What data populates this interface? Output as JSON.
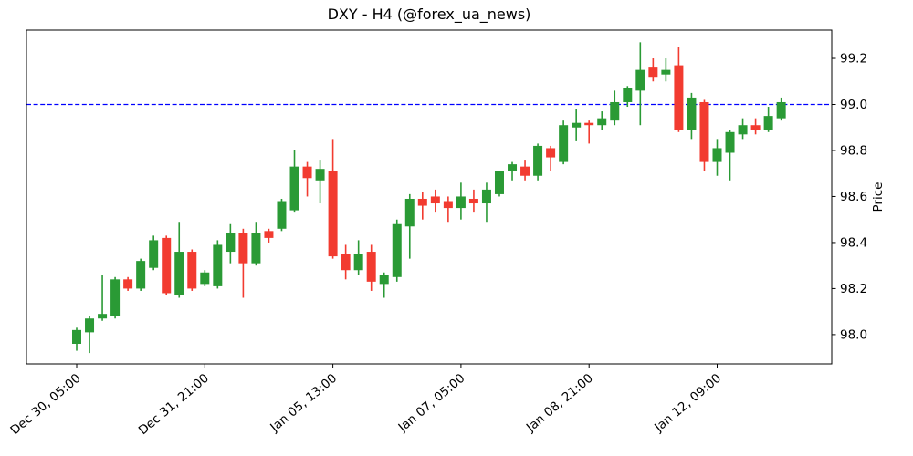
{
  "title": "DXY - H4 (@forex_ua_news)",
  "colors": {
    "up": "#2a9a35",
    "down": "#f23b30",
    "hline": "#0000ff",
    "axis": "#000000",
    "text": "#000000",
    "background": "#ffffff"
  },
  "chart_data": {
    "type": "candlestick",
    "symbol": "DXY",
    "timeframe": "H4",
    "source_handle": "@forex_ua_news",
    "ylabel": "Price",
    "ylabel_side": "right",
    "grid": false,
    "hline_value": 99.0,
    "hline_style": "dashed",
    "ylim": [
      97.87,
      99.32
    ],
    "y_ticks": [
      98.0,
      98.2,
      98.4,
      98.6,
      98.8,
      99.0,
      99.2
    ],
    "x_tick_indices": [
      0,
      10,
      20,
      30,
      40,
      50
    ],
    "x_tick_labels": [
      "Dec 30, 05:00",
      "Dec 31, 21:00",
      "Jan 05, 13:00",
      "Jan 07, 05:00",
      "Jan 08, 21:00",
      "Jan 12, 09:00"
    ],
    "ohlc": [
      [
        97.96,
        98.03,
        97.93,
        98.02
      ],
      [
        98.01,
        98.08,
        97.92,
        98.07
      ],
      [
        98.07,
        98.26,
        98.06,
        98.09
      ],
      [
        98.08,
        98.25,
        98.07,
        98.24
      ],
      [
        98.24,
        98.25,
        98.19,
        98.2
      ],
      [
        98.2,
        98.33,
        98.19,
        98.32
      ],
      [
        98.29,
        98.43,
        98.28,
        98.41
      ],
      [
        98.42,
        98.43,
        98.17,
        98.18
      ],
      [
        98.17,
        98.49,
        98.16,
        98.36
      ],
      [
        98.36,
        98.37,
        98.19,
        98.2
      ],
      [
        98.22,
        98.28,
        98.21,
        98.27
      ],
      [
        98.21,
        98.41,
        98.2,
        98.39
      ],
      [
        98.36,
        98.48,
        98.31,
        98.44
      ],
      [
        98.44,
        98.46,
        98.16,
        98.31
      ],
      [
        98.31,
        98.49,
        98.3,
        98.44
      ],
      [
        98.45,
        98.46,
        98.4,
        98.42
      ],
      [
        98.46,
        98.59,
        98.45,
        98.58
      ],
      [
        98.54,
        98.8,
        98.53,
        98.73
      ],
      [
        98.73,
        98.75,
        98.6,
        98.68
      ],
      [
        98.67,
        98.76,
        98.57,
        98.72
      ],
      [
        98.71,
        98.85,
        98.33,
        98.34
      ],
      [
        98.35,
        98.39,
        98.24,
        98.28
      ],
      [
        98.28,
        98.41,
        98.26,
        98.35
      ],
      [
        98.36,
        98.39,
        98.19,
        98.23
      ],
      [
        98.22,
        98.27,
        98.16,
        98.26
      ],
      [
        98.25,
        98.5,
        98.23,
        98.48
      ],
      [
        98.47,
        98.61,
        98.33,
        98.59
      ],
      [
        98.59,
        98.62,
        98.5,
        98.56
      ],
      [
        98.6,
        98.63,
        98.53,
        98.57
      ],
      [
        98.58,
        98.6,
        98.49,
        98.55
      ],
      [
        98.55,
        98.66,
        98.5,
        98.6
      ],
      [
        98.59,
        98.63,
        98.53,
        98.57
      ],
      [
        98.57,
        98.66,
        98.49,
        98.63
      ],
      [
        98.61,
        98.71,
        98.6,
        98.71
      ],
      [
        98.71,
        98.75,
        98.67,
        98.74
      ],
      [
        98.73,
        98.76,
        98.67,
        98.69
      ],
      [
        98.69,
        98.83,
        98.67,
        98.82
      ],
      [
        98.81,
        98.82,
        98.71,
        98.77
      ],
      [
        98.75,
        98.93,
        98.74,
        98.91
      ],
      [
        98.9,
        98.98,
        98.84,
        98.92
      ],
      [
        98.92,
        98.93,
        98.83,
        98.91
      ],
      [
        98.91,
        98.97,
        98.89,
        98.94
      ],
      [
        98.93,
        99.06,
        98.91,
        99.01
      ],
      [
        99.01,
        99.08,
        98.99,
        99.07
      ],
      [
        99.06,
        99.27,
        98.91,
        99.15
      ],
      [
        99.16,
        99.2,
        99.1,
        99.12
      ],
      [
        99.13,
        99.2,
        99.1,
        99.15
      ],
      [
        99.17,
        99.25,
        98.88,
        98.89
      ],
      [
        98.89,
        99.05,
        98.85,
        99.03
      ],
      [
        99.01,
        99.02,
        98.71,
        98.75
      ],
      [
        98.75,
        98.85,
        98.69,
        98.81
      ],
      [
        98.79,
        98.89,
        98.67,
        98.88
      ],
      [
        98.87,
        98.94,
        98.85,
        98.91
      ],
      [
        98.91,
        98.94,
        98.87,
        98.89
      ],
      [
        98.89,
        98.99,
        98.88,
        98.95
      ],
      [
        98.94,
        99.03,
        98.93,
        99.01
      ]
    ]
  }
}
